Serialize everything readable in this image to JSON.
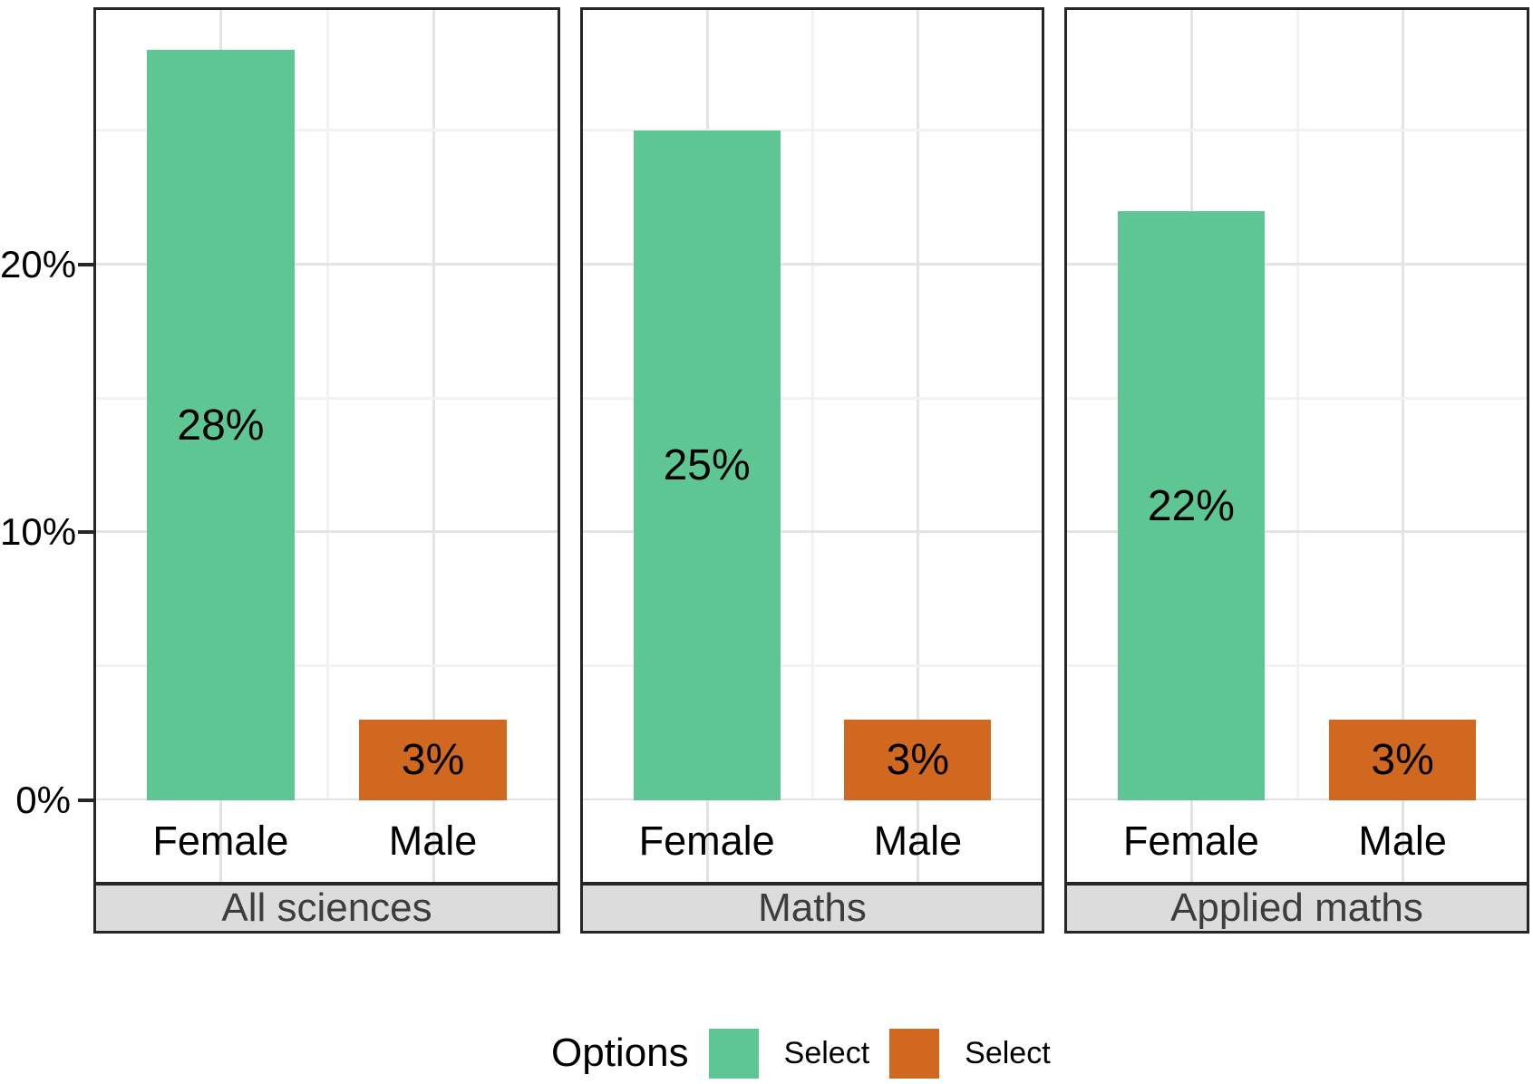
{
  "chart_data": {
    "type": "bar",
    "title": "",
    "categories": [
      "Female",
      "Male"
    ],
    "y_axis": {
      "ticks": [
        {
          "value": 0,
          "label": "0%"
        },
        {
          "value": 10,
          "label": "10%"
        },
        {
          "value": 20,
          "label": "20%"
        }
      ],
      "minor_ticks": [
        5,
        15,
        25
      ],
      "ylim": [
        0,
        29.5
      ],
      "grid": true,
      "unit": "%"
    },
    "facets": [
      {
        "label": "All sciences",
        "values": [
          28,
          3
        ],
        "value_labels": [
          "28%",
          "3%"
        ]
      },
      {
        "label": "Maths",
        "values": [
          25,
          3
        ],
        "value_labels": [
          "25%",
          "3%"
        ]
      },
      {
        "label": "Applied maths",
        "values": [
          22,
          3
        ],
        "value_labels": [
          "22%",
          "3%"
        ]
      }
    ],
    "series_colors": {
      "Female": "#5ec693",
      "Male": "#d0681f"
    },
    "legend_position": "bottom"
  },
  "legend": {
    "title": "Options",
    "items": [
      {
        "label": "Select",
        "color": "#5ec693"
      },
      {
        "label": "Select",
        "color": "#d0681f"
      }
    ]
  },
  "colors": {
    "bar_green": "#5ec693",
    "bar_orange": "#d0681f",
    "strip_background": "#dcdcdc",
    "strip_text": "#3d3d3d",
    "panel_border": "#262626",
    "grid_major": "#e4e4e4",
    "grid_minor": "#f2f2f2"
  }
}
